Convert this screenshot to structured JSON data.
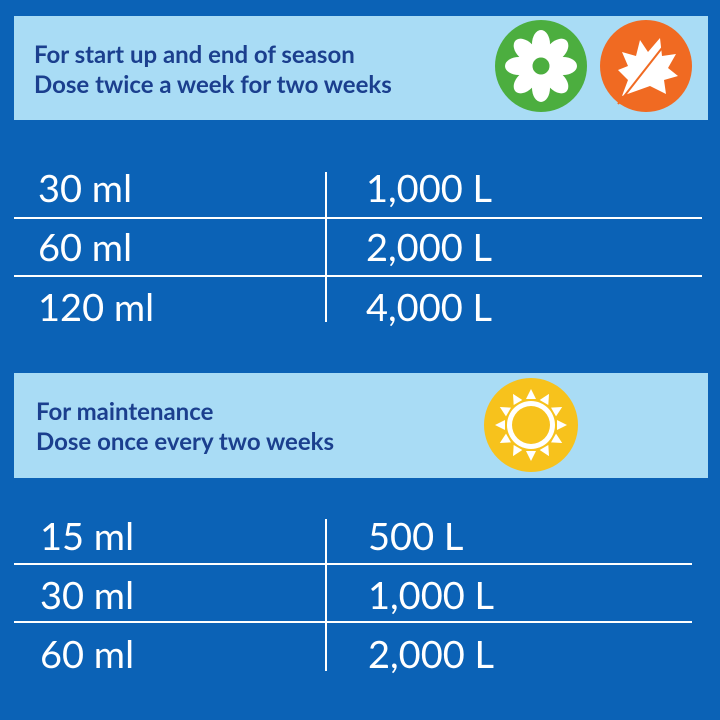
{
  "sections": [
    {
      "title": "For start up and end of season",
      "subtitle": "Dose twice a week for two weeks",
      "rows": [
        [
          "30 ml",
          "1,000 L"
        ],
        [
          "60 ml",
          "2,000 L"
        ],
        [
          "120 ml",
          "4,000 L"
        ]
      ]
    },
    {
      "title": "For maintenance",
      "subtitle": "Dose once every two weeks",
      "rows": [
        [
          "15 ml",
          "500 L"
        ],
        [
          "30 ml",
          "1,000 L"
        ],
        [
          "60 ml",
          "2,000 L"
        ]
      ]
    }
  ]
}
